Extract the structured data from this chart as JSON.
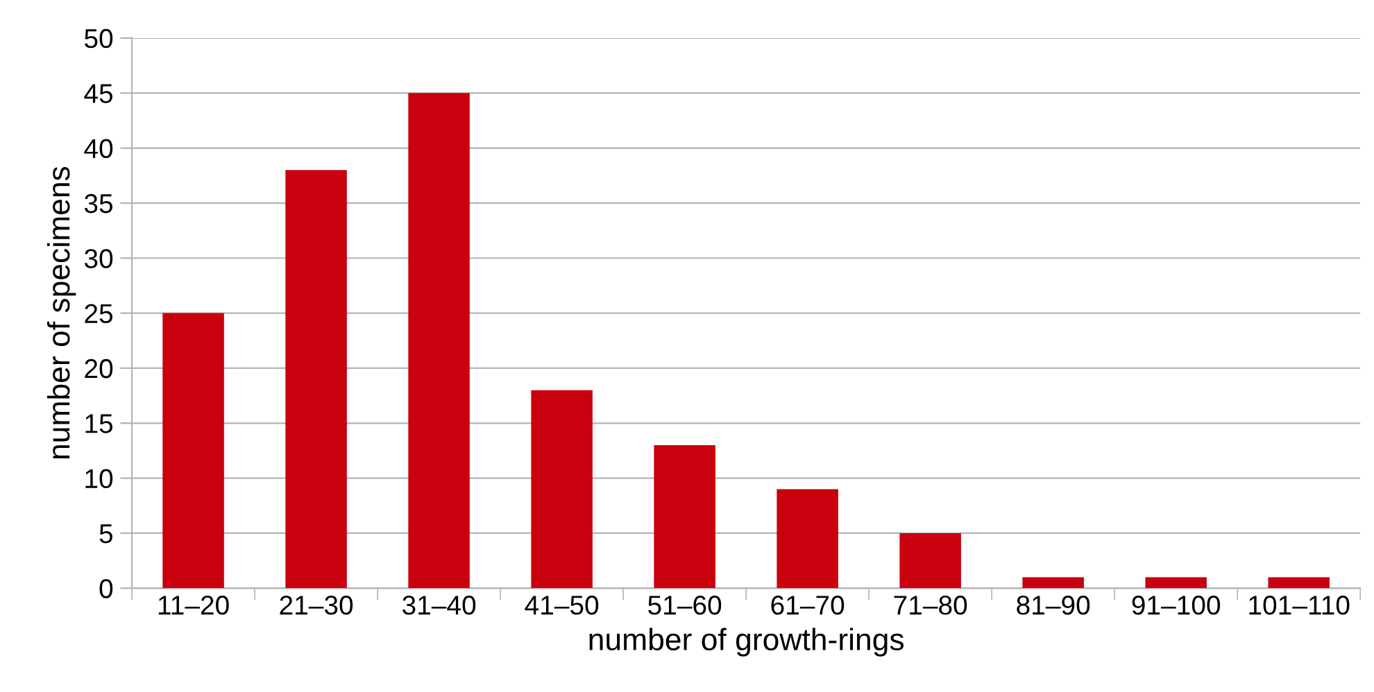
{
  "chart_data": {
    "type": "bar",
    "xlabel": "number of growth-rings",
    "ylabel": "number of specimens",
    "categories": [
      "11–20",
      "21–30",
      "31–40",
      "41–50",
      "51–60",
      "61–70",
      "71–80",
      "81–90",
      "91–100",
      "101–110"
    ],
    "values": [
      25,
      38,
      45,
      18,
      13,
      9,
      5,
      1,
      1,
      1
    ],
    "color": "#c9000e",
    "ylim": [
      0,
      50
    ],
    "yticks": [
      0,
      5,
      10,
      15,
      20,
      25,
      30,
      35,
      40,
      45,
      50
    ],
    "grid": "y",
    "legend": false
  }
}
